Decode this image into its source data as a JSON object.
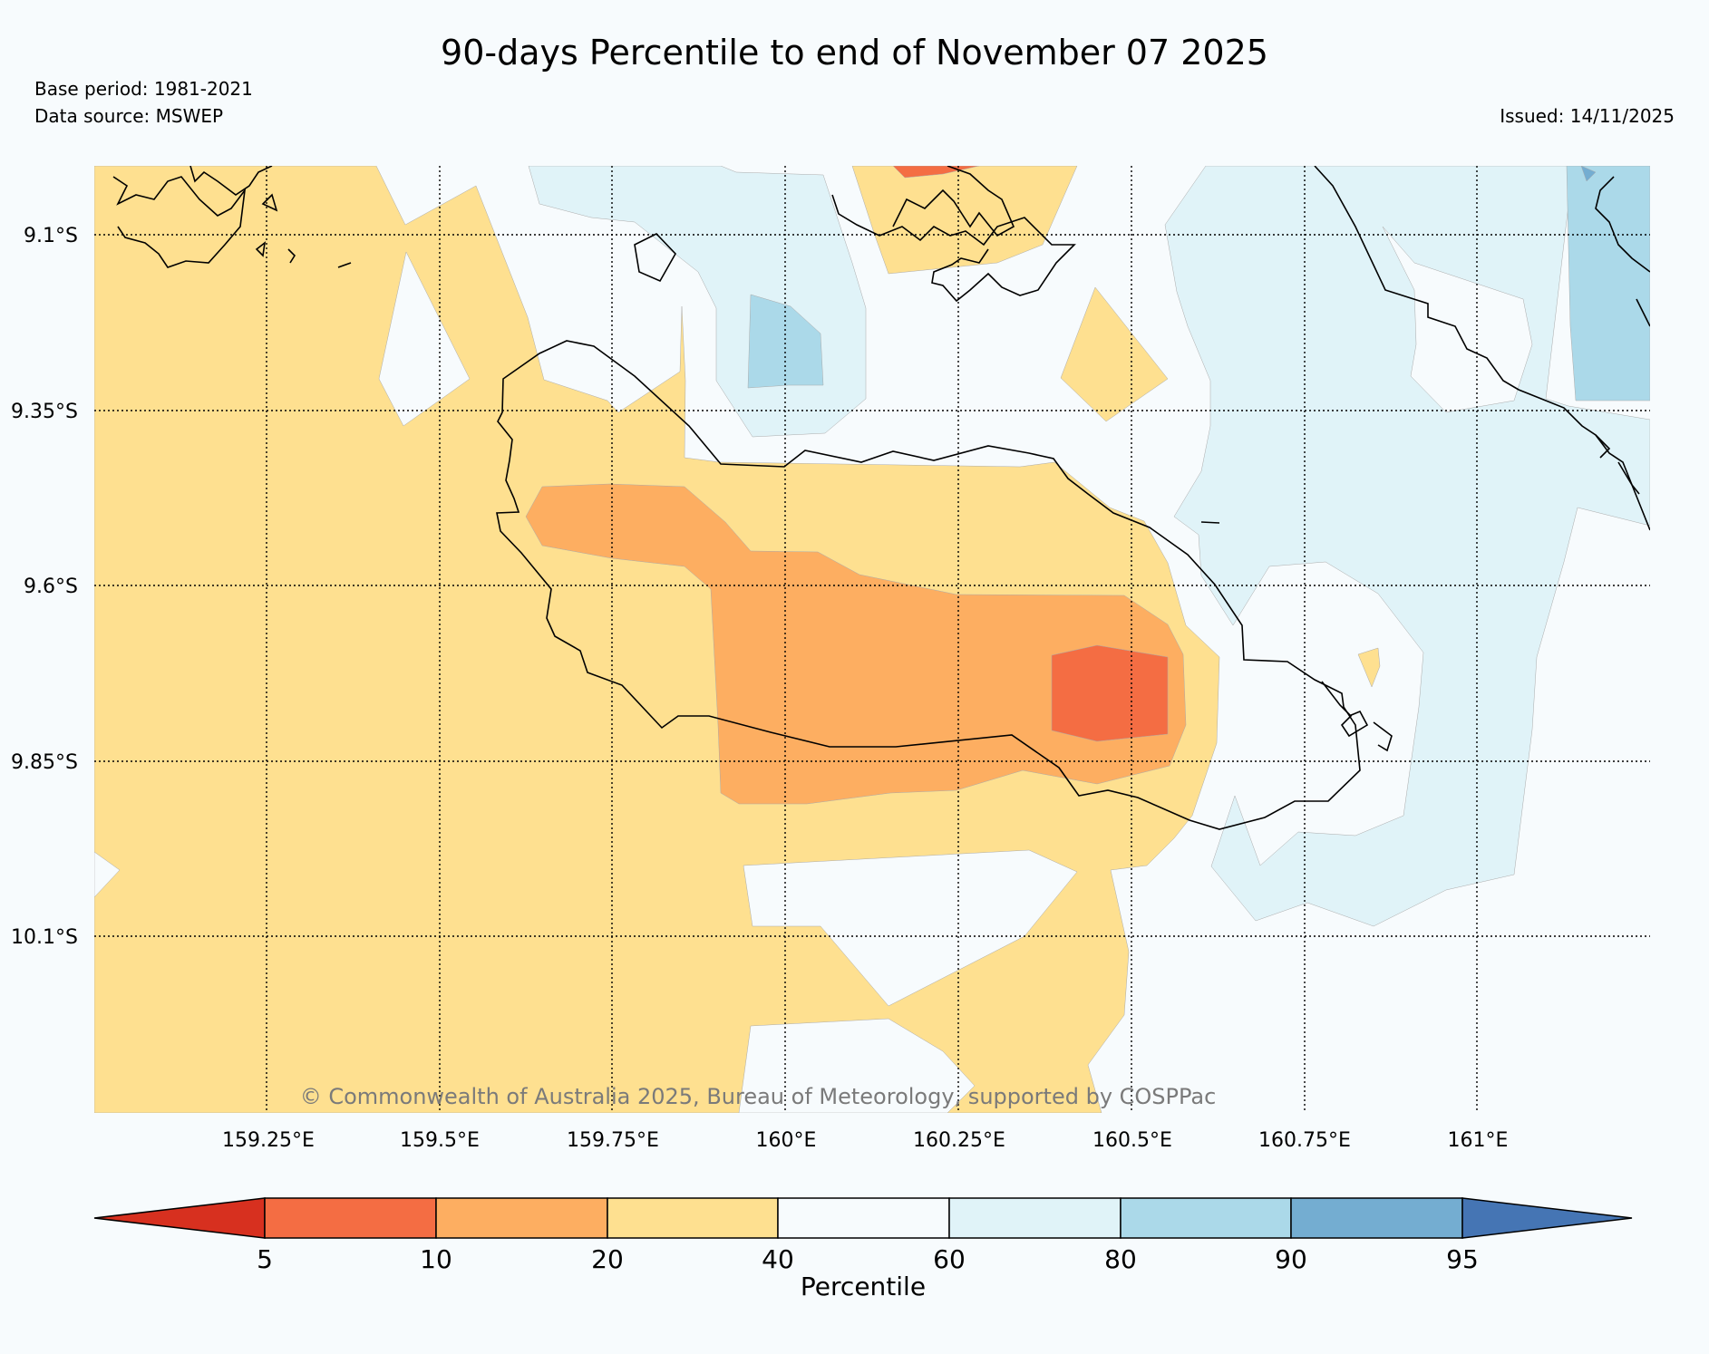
{
  "title": "90-days Percentile to end of November 07 2025",
  "base_period": "Base period: 1981-2021",
  "data_source": "Data source: MSWEP",
  "issued": "Issued: 14/11/2025",
  "copyright": "© Commonwealth of Australia 2025, Bureau of Meteorology, supported by COSPPac",
  "map": {
    "lat_labels": [
      "9.1°S",
      "9.35°S",
      "9.6°S",
      "9.85°S",
      "10.1°S"
    ],
    "lon_labels": [
      "159.25°E",
      "159.5°E",
      "159.75°E",
      "160°E",
      "160.25°E",
      "160.5°E",
      "160.75°E",
      "161°E"
    ]
  },
  "colorbar": {
    "label": "Percentile",
    "ticks": [
      "5",
      "10",
      "20",
      "40",
      "60",
      "80",
      "90",
      "95"
    ],
    "colors": [
      "#d7301f",
      "#f46d43",
      "#fdae61",
      "#fee090",
      "#f7fbfd",
      "#e0f3f8",
      "#abd9e9",
      "#74add1",
      "#4575b4"
    ]
  },
  "palette": {
    "below_5": "#d7301f",
    "p5_10": "#f46d43",
    "p10_20": "#fdae61",
    "p20_40": "#fee090",
    "p40_60": "#f7fbfd",
    "p60_80": "#e0f3f8",
    "p80_90": "#abd9e9",
    "p90_95": "#74add1",
    "above_95": "#4575b4"
  }
}
